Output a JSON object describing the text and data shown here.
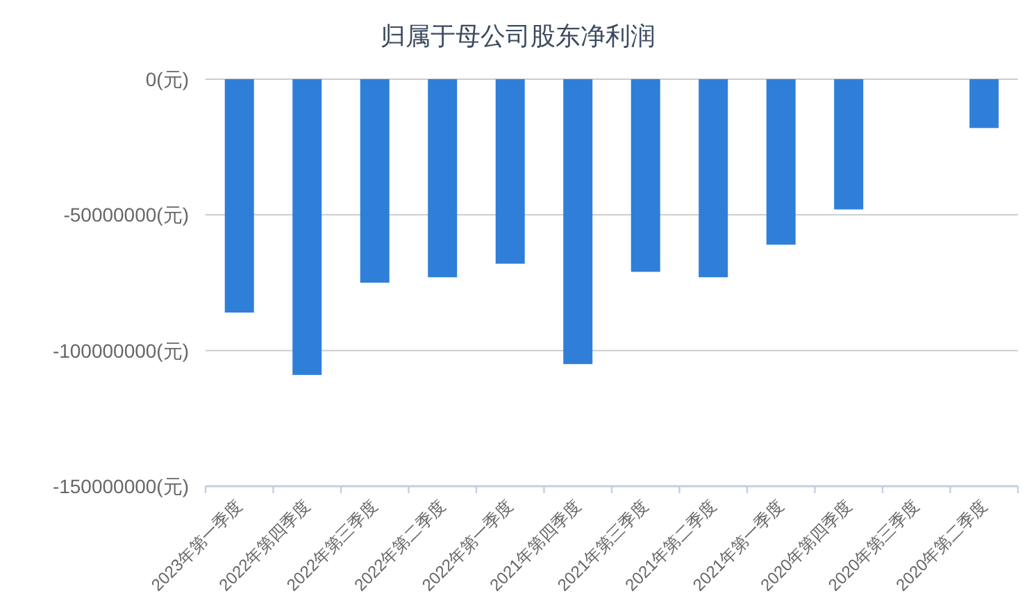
{
  "chart_data": {
    "type": "bar",
    "title": "归属于母公司股东净利润",
    "categories": [
      "2023年第一季度",
      "2022年第四季度",
      "2022年第三季度",
      "2022年第二季度",
      "2022年第一季度",
      "2021年第四季度",
      "2021年第三季度",
      "2021年第二季度",
      "2021年第一季度",
      "2020年第四季度",
      "2020年第三季度",
      "2020年第二季度"
    ],
    "values": [
      -86000000,
      -109000000,
      -75000000,
      -73000000,
      -68000000,
      -105000000,
      -71000000,
      -73000000,
      -61000000,
      -48000000,
      null,
      -18000000
    ],
    "color": "#2f7fd8",
    "ylim": [
      -150000000,
      0
    ],
    "yticks": [
      {
        "value": 0,
        "label": "0(元)"
      },
      {
        "value": -50000000,
        "label": "-50000000(元)"
      },
      {
        "value": -100000000,
        "label": "-100000000(元)"
      },
      {
        "value": -150000000,
        "label": "-150000000(元)"
      }
    ],
    "grid": "y"
  }
}
